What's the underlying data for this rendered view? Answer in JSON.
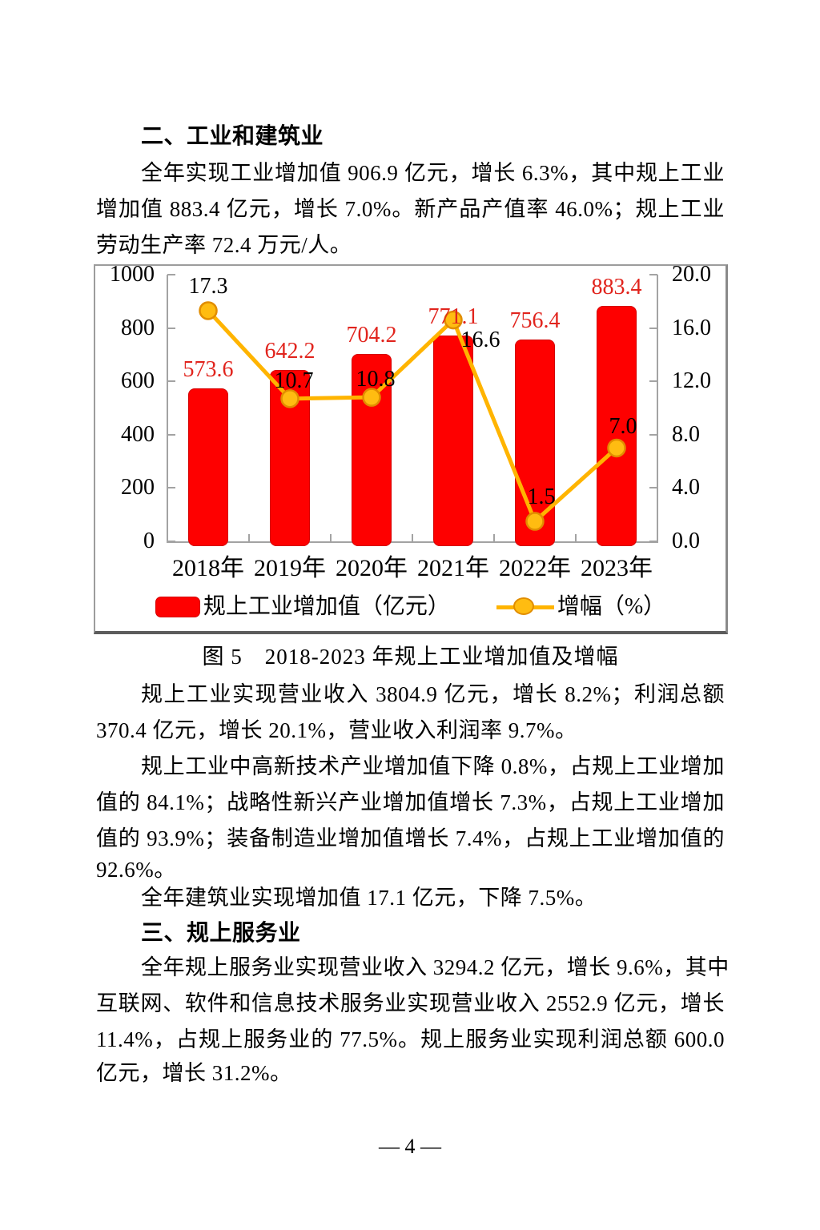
{
  "body": {
    "heading_industry": "二、工业和建筑业",
    "lines": [
      "全年实现工业增加值 906.9 亿元，增长 6.3%，其中规上工业",
      "增加值 883.4 亿元，增长 7.0%。新产品产值率 46.0%；规上工业",
      "劳动生产率 72.4 万元/人。",
      "规上工业实现营业收入 3804.9 亿元，增长 8.2%；利润总额",
      "370.4 亿元，增长 20.1%，营业收入利润率 9.7%。",
      "规上工业中高新技术产业增加值下降 0.8%，占规上工业增加",
      "值的 84.1%；战略性新兴产业增加值增长 7.3%，占规上工业增加",
      "值的 93.9%；装备制造业增加值增长 7.4%，占规上工业增加值的",
      "92.6%。",
      "全年建筑业实现增加值 17.1 亿元，下降 7.5%。"
    ],
    "heading_services": "三、规上服务业",
    "services_lines": [
      "全年规上服务业实现营业收入 3294.2 亿元，增长 9.6%，其中",
      "互联网、软件和信息技术服务业实现营业收入 2552.9 亿元，增长",
      "11.4%，占规上服务业的 77.5%。规上服务业实现利润总额 600.0",
      "亿元，增长 31.2%。"
    ],
    "figure_caption": "图 5　2018-2023 年规上工业增加值及增幅",
    "footer": "— 4 —"
  },
  "chart_data": {
    "type": "bar",
    "title": "图 5　2018-2023 年规上工业增加值及增幅",
    "categories": [
      "2018年",
      "2019年",
      "2020年",
      "2021年",
      "2022年",
      "2023年"
    ],
    "series": [
      {
        "name": "规上工业增加值（亿元）",
        "type": "bar",
        "axis": "left",
        "values": [
          573.6,
          642.2,
          704.2,
          771.1,
          756.4,
          883.4
        ]
      },
      {
        "name": "增幅（%）",
        "type": "line",
        "axis": "right",
        "values": [
          17.3,
          10.7,
          10.8,
          16.6,
          1.5,
          7.0
        ]
      }
    ],
    "left_axis": {
      "min": 0,
      "max": 1000,
      "tick_labels": [
        "0",
        "200",
        "400",
        "600",
        "800",
        "1000"
      ]
    },
    "right_axis": {
      "min": 0,
      "max": 20,
      "tick_labels": [
        "0.0",
        "4.0",
        "8.0",
        "12.0",
        "16.0",
        "20.0"
      ]
    },
    "grid": false,
    "legend_position": "bottom",
    "style": {
      "bar_color": "#fe0000",
      "bar_border_color": "#d40000",
      "bar_label_color": "#e1241d",
      "line_color": "#ffb400",
      "marker_fill": "#ffbc11",
      "marker_stroke": "#e18d00",
      "axis_color": "#a3a3a3",
      "point_label_color": "#000000"
    }
  }
}
